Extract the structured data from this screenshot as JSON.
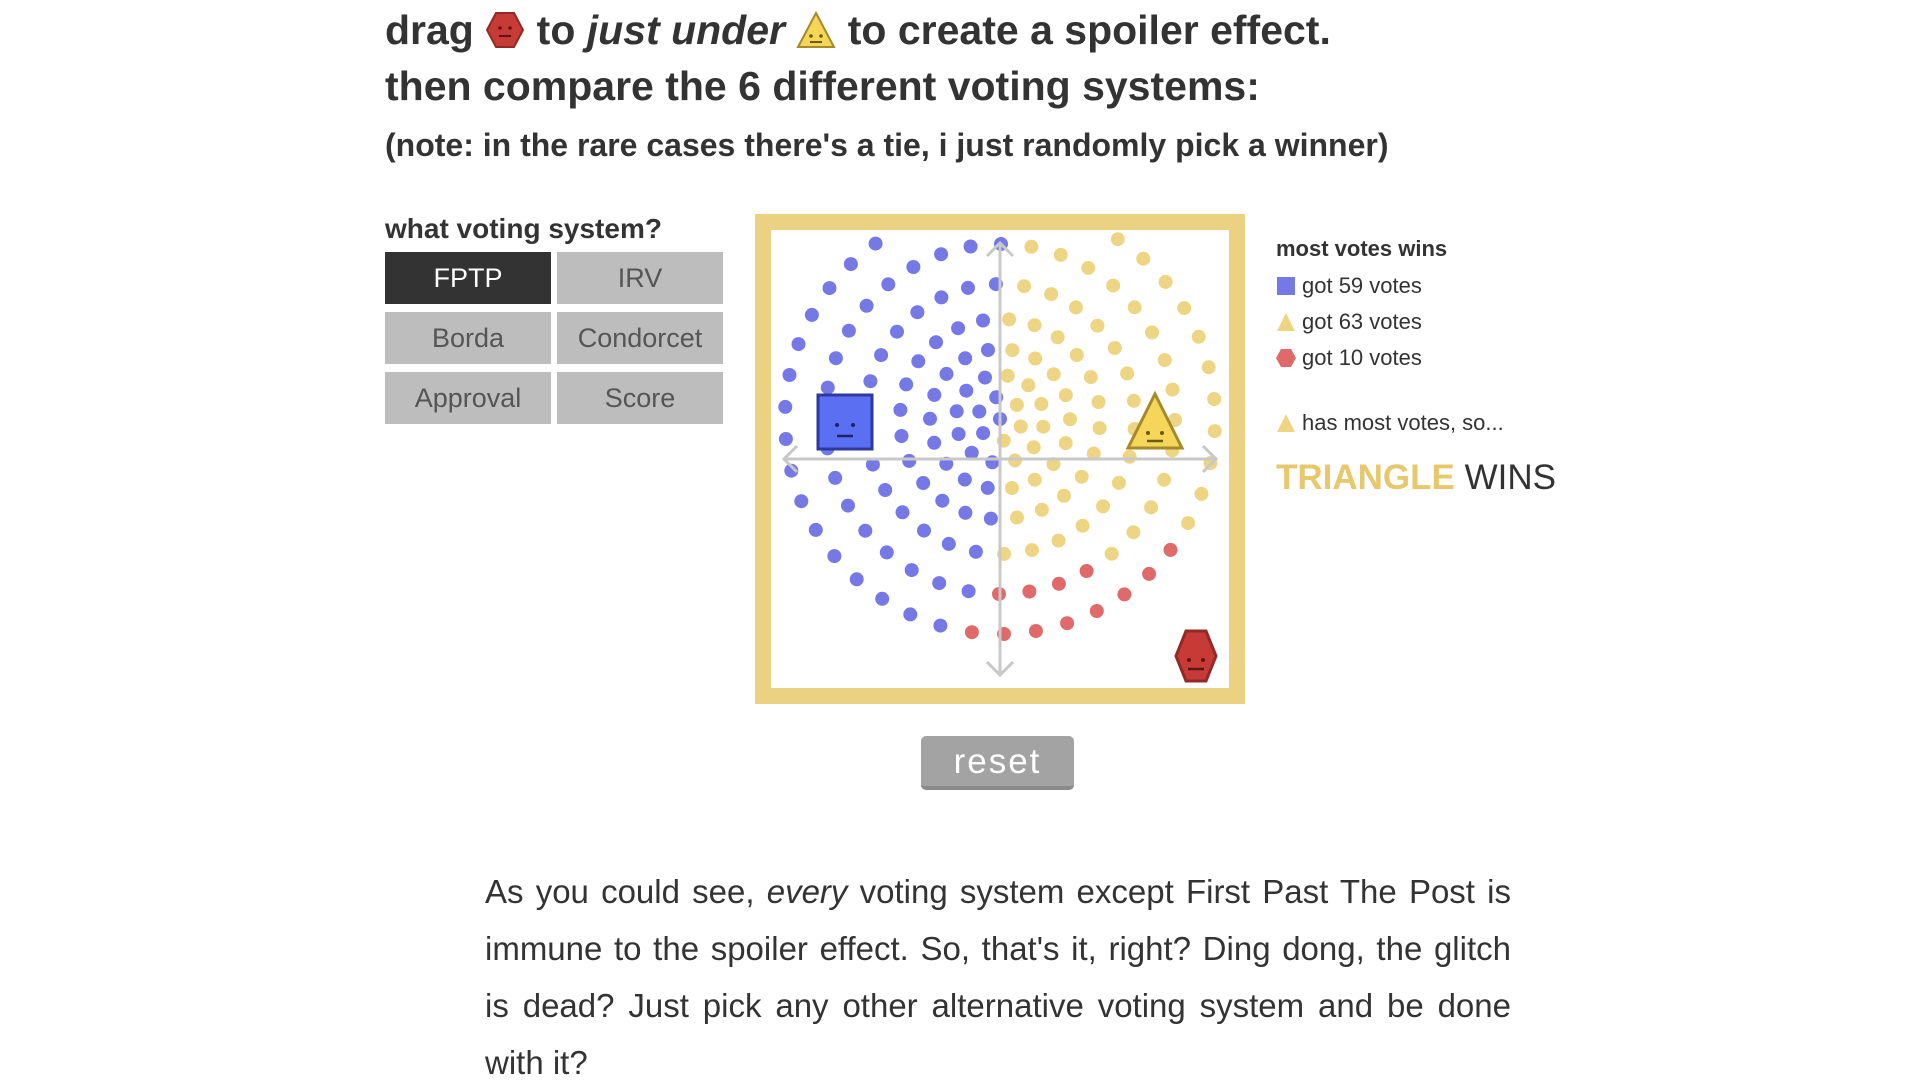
{
  "heading": {
    "line1_part1": "drag",
    "line1_part2": "to",
    "line1_emph": "just under",
    "line1_part3": "to create a spoiler effect.",
    "line2": "then compare the 6 different voting systems:",
    "note": "(note: in the rare cases there's a tie, i just randomly pick a winner)"
  },
  "voting_systems": {
    "label": "what voting system?",
    "options": [
      "FPTP",
      "IRV",
      "Borda",
      "Condorcet",
      "Approval",
      "Score"
    ],
    "selected": "FPTP"
  },
  "results": {
    "title": "most votes wins",
    "rows": [
      {
        "candidate": "square",
        "text": "got 59 votes",
        "color": "#7479e6"
      },
      {
        "candidate": "triangle",
        "text": "got 63 votes",
        "color": "#edd583"
      },
      {
        "candidate": "hexagon",
        "text": "got 10 votes",
        "color": "#e06a6a"
      }
    ],
    "conclusion": "has most votes, so...",
    "winner_name": "TRIANGLE",
    "winner_suffix": "WINS"
  },
  "colors": {
    "square": "#5b6ff3",
    "triangle": "#f5d658",
    "hexagon": "#c83a36",
    "frame": "#ebd182",
    "square_voter": "#7479e6",
    "triangle_voter": "#edd583",
    "hexagon_voter": "#e06a6a"
  },
  "reset_label": "reset",
  "paragraph": {
    "part1": "As you could see,",
    "emph": "every",
    "part2": "voting system except First Past The Post is immune to the spoiler effect. So, that's it, right? Ding dong, the glitch is dead? Just pick any other alternative voting system and be done with it?"
  }
}
